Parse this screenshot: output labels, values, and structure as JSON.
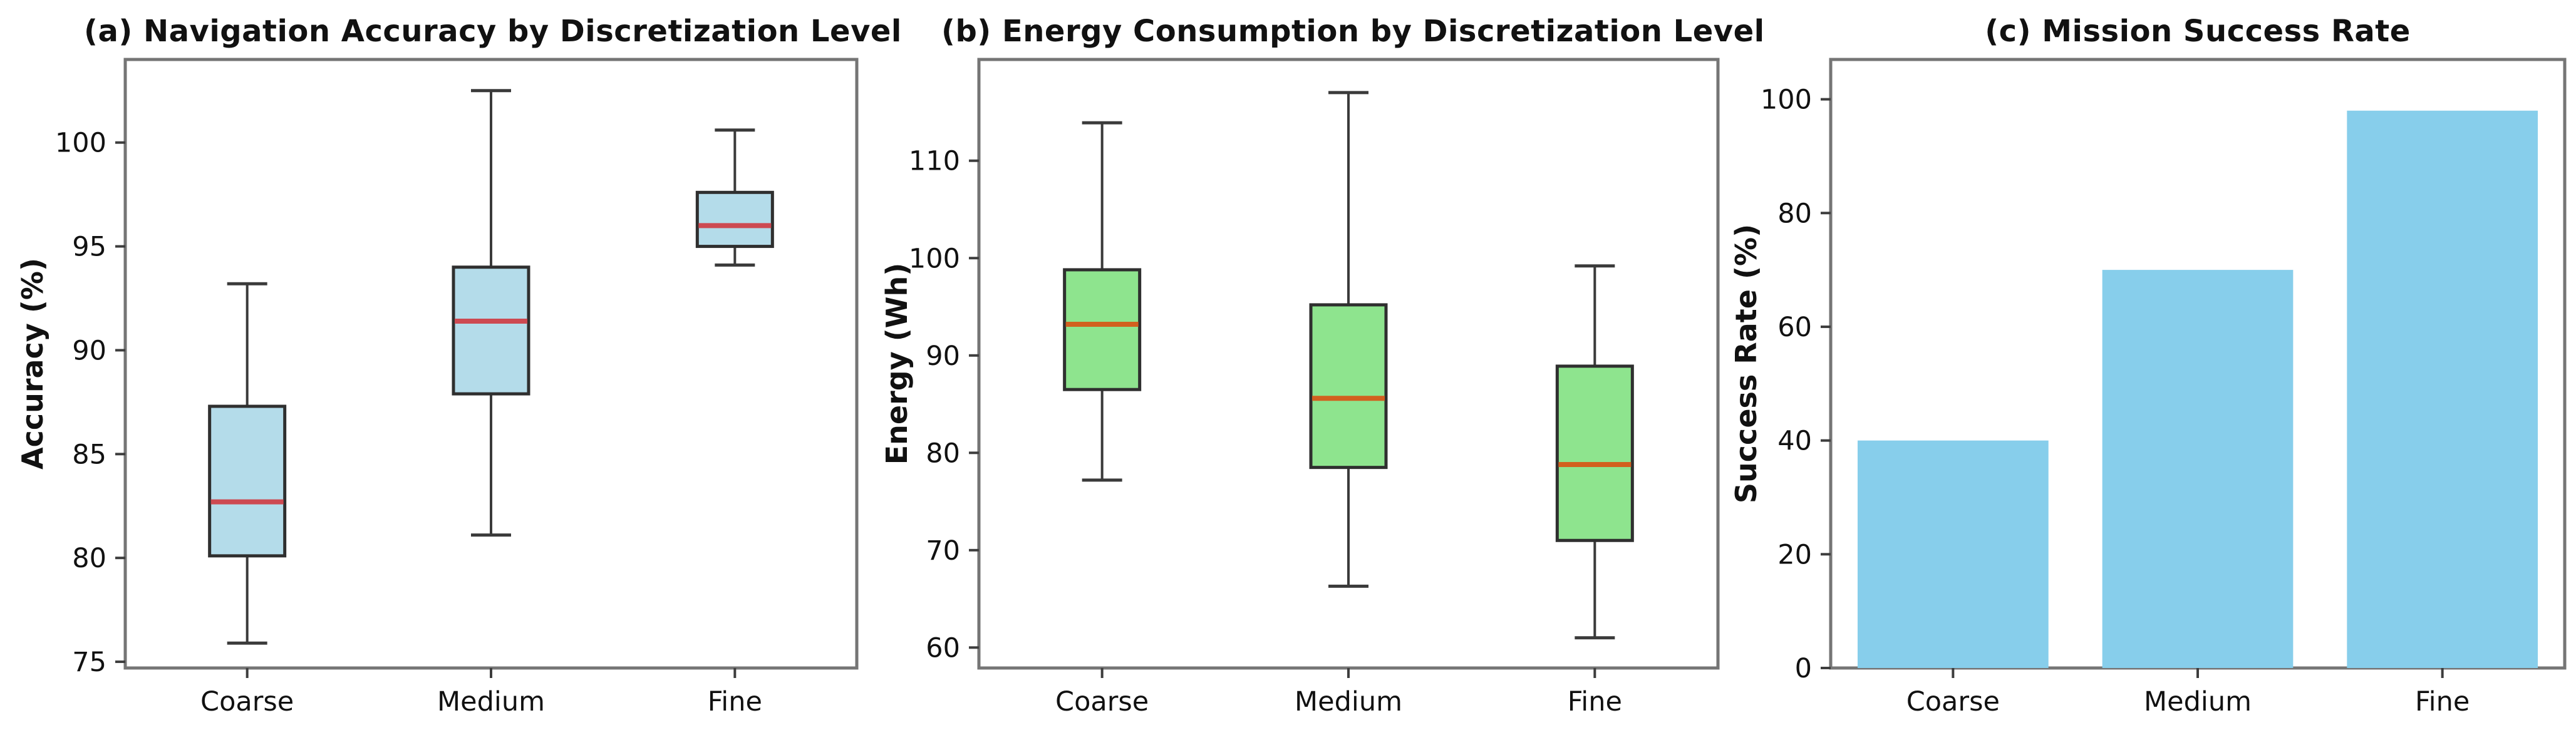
{
  "figure": {
    "background": "#ffffff",
    "text_color": "#111111",
    "spine_color": "#757575",
    "tick_color": "#3d3d3d"
  },
  "chart_data": [
    {
      "type": "box",
      "title": "(a) Navigation Accuracy by Discretization Level",
      "ylabel": "Accuracy (%)",
      "categories": [
        "Coarse",
        "Medium",
        "Fine"
      ],
      "yticks": [
        75,
        80,
        85,
        90,
        95,
        100
      ],
      "ylim": [
        74.7,
        104.0
      ],
      "grid": false,
      "box_fill": "#b4dcea",
      "box_edge": "#2f2f2f",
      "median_color": "#cd4a52",
      "whisker_color": "#3a3a3a",
      "boxes": [
        {
          "label": "Coarse",
          "whisker_low": 75.9,
          "q1": 80.1,
          "median": 82.7,
          "q3": 87.3,
          "whisker_high": 93.2
        },
        {
          "label": "Medium",
          "whisker_low": 81.1,
          "q1": 87.9,
          "median": 91.4,
          "q3": 94.0,
          "whisker_high": 102.5
        },
        {
          "label": "Fine",
          "whisker_low": 94.1,
          "q1": 95.0,
          "median": 96.0,
          "q3": 97.6,
          "whisker_high": 100.6
        }
      ]
    },
    {
      "type": "box",
      "title": "(b) Energy Consumption by Discretization Level",
      "ylabel": "Energy (Wh)",
      "categories": [
        "Coarse",
        "Medium",
        "Fine"
      ],
      "yticks": [
        60,
        70,
        80,
        90,
        100,
        110
      ],
      "ylim": [
        57.9,
        120.4
      ],
      "grid": false,
      "box_fill": "#8ee48e",
      "box_edge": "#2f2f2f",
      "median_color": "#d2601e",
      "whisker_color": "#3a3a3a",
      "boxes": [
        {
          "label": "Coarse",
          "whisker_low": 77.2,
          "q1": 86.5,
          "median": 93.2,
          "q3": 98.8,
          "whisker_high": 113.9
        },
        {
          "label": "Medium",
          "whisker_low": 66.3,
          "q1": 78.5,
          "median": 85.6,
          "q3": 95.2,
          "whisker_high": 117.0
        },
        {
          "label": "Fine",
          "whisker_low": 61.0,
          "q1": 71.0,
          "median": 78.8,
          "q3": 88.9,
          "whisker_high": 99.2
        }
      ]
    },
    {
      "type": "bar",
      "title": "(c) Mission Success Rate",
      "ylabel": "Success Rate (%)",
      "categories": [
        "Coarse",
        "Medium",
        "Fine"
      ],
      "yticks": [
        0,
        20,
        40,
        60,
        80,
        100
      ],
      "ylim": [
        0,
        107
      ],
      "grid": false,
      "bar_fill": "#87ceeb",
      "values": [
        40,
        70,
        98
      ]
    }
  ]
}
